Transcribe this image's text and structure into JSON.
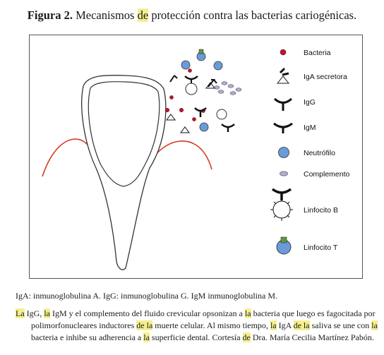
{
  "title": {
    "label": "Figura 2.",
    "part1": "Mecanismos ",
    "highlight": "de",
    "part2": " protección contra las bacterias cariogénicas."
  },
  "legend": [
    {
      "icon": "bacteria-icon",
      "label": "Bacteria"
    },
    {
      "icon": "iga-secretora-icon",
      "label": "IgA secretora"
    },
    {
      "icon": "igg-icon",
      "label": "IgG"
    },
    {
      "icon": "igm-icon",
      "label": "IgM"
    },
    {
      "icon": "neutrofilo-icon",
      "label": "Neutrófilo"
    },
    {
      "icon": "complemento-icon",
      "label": "Complemento"
    },
    {
      "icon": "linfocito-b-icon",
      "label": "Linfocito B"
    },
    {
      "icon": "linfocito-t-icon",
      "label": "Linfocito T"
    }
  ],
  "abbreviations": "IgA: inmunoglobulina A. IgG: inmunoglobulina G. IgM inmunoglobulina M.",
  "caption": {
    "line1": [
      {
        "t": "La",
        "h": true
      },
      {
        "t": " IgG, ",
        "h": false
      },
      {
        "t": "la",
        "h": true
      },
      {
        "t": " IgM y el complemento del fluido crevicular opsonizan a ",
        "h": false
      },
      {
        "t": "la",
        "h": true
      },
      {
        "t": " bacteria que luego es fagocitada por",
        "h": false
      }
    ],
    "line2": [
      {
        "t": "polimorfonucleares inductores ",
        "h": false
      },
      {
        "t": "de la",
        "h": true
      },
      {
        "t": " muerte celular. Al mismo tiempo, ",
        "h": false
      },
      {
        "t": "la",
        "h": true
      },
      {
        "t": " IgA ",
        "h": false
      },
      {
        "t": "de la",
        "h": true
      },
      {
        "t": " saliva se une con ",
        "h": false
      },
      {
        "t": "la",
        "h": true
      }
    ],
    "line3": [
      {
        "t": "bacteria e inhibe su adherencia a ",
        "h": false
      },
      {
        "t": "la",
        "h": true
      },
      {
        "t": " superficie dental. Cortesía ",
        "h": false
      },
      {
        "t": "de",
        "h": true
      },
      {
        "t": " Dra. María Cecilia Martínez Pabón.",
        "h": false
      }
    ]
  },
  "colors": {
    "bacteria": "#c8102e",
    "neutrofilo": "#6a9bd8",
    "complemento": "#b6a9d6",
    "gum": "#d63a1e",
    "highlight": "#f3f08f"
  }
}
